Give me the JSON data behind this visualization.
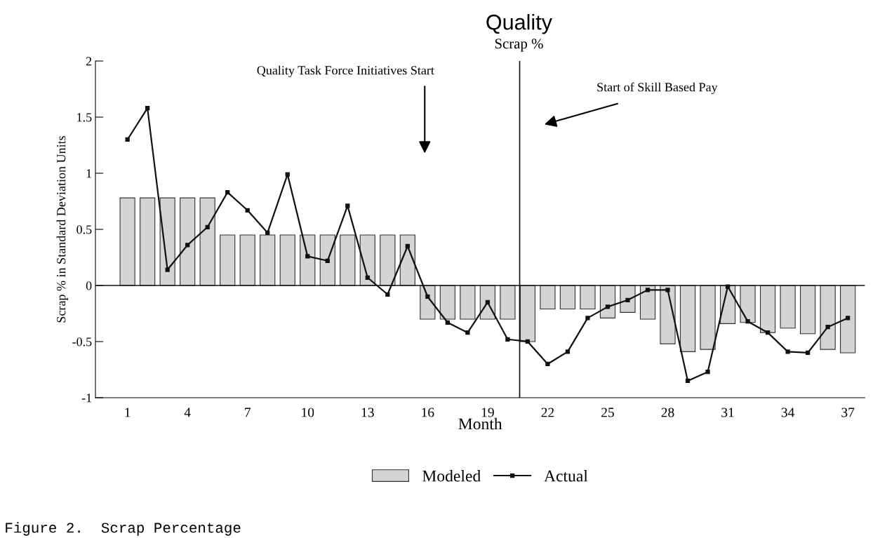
{
  "chart_data": {
    "type": "bar",
    "title": "Quality",
    "subtitle": "Scrap %",
    "xlabel": "Month",
    "ylabel": "Scrap % in Standard Deviation Units",
    "x": [
      1,
      2,
      3,
      4,
      5,
      6,
      7,
      8,
      9,
      10,
      11,
      12,
      13,
      14,
      15,
      16,
      17,
      18,
      19,
      20,
      21,
      22,
      23,
      24,
      25,
      26,
      27,
      28,
      29,
      30,
      31,
      32,
      33,
      34,
      35,
      36,
      37
    ],
    "series": [
      {
        "name": "Modeled",
        "color": "#d4d4d4",
        "values": [
          0.78,
          0.78,
          0.78,
          0.78,
          0.78,
          0.45,
          0.45,
          0.45,
          0.45,
          0.45,
          0.45,
          0.45,
          0.45,
          0.45,
          0.45,
          -0.3,
          -0.3,
          -0.3,
          -0.3,
          -0.3,
          -0.5,
          -0.21,
          -0.21,
          -0.21,
          -0.29,
          -0.24,
          -0.3,
          -0.52,
          -0.59,
          -0.57,
          -0.34,
          -0.33,
          -0.42,
          -0.38,
          -0.43,
          -0.57,
          -0.6
        ]
      },
      {
        "name": "Actual",
        "type": "line",
        "color": "#111111",
        "marker": "square",
        "line_style": "solid",
        "values": [
          1.3,
          1.58,
          0.14,
          0.36,
          0.52,
          0.83,
          0.67,
          0.47,
          0.99,
          0.26,
          0.22,
          0.71,
          0.07,
          -0.08,
          0.35,
          -0.1,
          -0.33,
          -0.42,
          -0.15,
          -0.48,
          -0.5,
          -0.7,
          -0.59,
          -0.29,
          -0.19,
          -0.13,
          -0.04,
          -0.04,
          -0.85,
          -0.77,
          -0.01,
          -0.32,
          -0.42,
          -0.59,
          -0.6,
          -0.37,
          -0.29
        ]
      }
    ],
    "xlim": [
      -0.6,
      37.85
    ],
    "xticks": [
      1,
      4,
      7,
      10,
      13,
      16,
      19,
      22,
      25,
      28,
      31,
      34,
      37
    ],
    "ylim": [
      -1,
      2
    ],
    "yticks": [
      -1,
      {
        "value": -0.5,
        "label": "-0.5"
      },
      0,
      {
        "value": 0.5,
        "label": "0.5"
      },
      1,
      {
        "value": 1.5,
        "label": "1.5"
      },
      2
    ],
    "ref_lines": [
      {
        "axis": "y",
        "value": 0,
        "color": "#111111"
      },
      {
        "axis": "x",
        "value": 20.6,
        "color": "#111111"
      }
    ],
    "annotations": [
      "Quality Task Force Initiatives Start",
      "Start of Skill Based Pay",
      "Figure 2.  Scrap Percentage"
    ],
    "grid": false,
    "legend": "bottom"
  }
}
